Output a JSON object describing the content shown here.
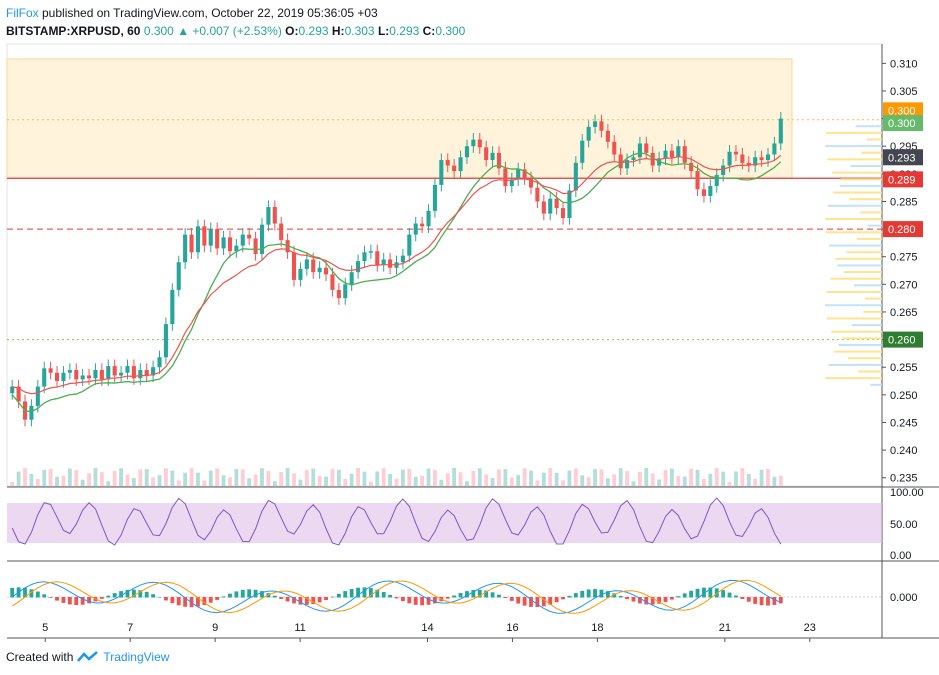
{
  "header": {
    "brand": "FilFox",
    "published": " published on TradingView.com, October 22, 2019 05:36:05 +03",
    "symbol": "BITSTAMP:XRPUSD, 60",
    "last": "0.300",
    "change": "+0.007 (+2.53%)",
    "o_label": "O:",
    "o_val": "0.293",
    "h_label": "H:",
    "h_val": "0.303",
    "l_label": "L:",
    "l_val": "0.293",
    "c_label": "C:",
    "c_val": "0.300"
  },
  "footer": {
    "created": "Created with",
    "tv": "TradingView"
  },
  "colors": {
    "up": "#26a69a",
    "down": "#ef5350",
    "sma": "#4caf50",
    "ema": "#ef5350",
    "zone": "#fff3dc",
    "rsi": "#e1bee7"
  },
  "chart_data": {
    "type": "candlestick",
    "price_axis": [
      "0.310",
      "0.305",
      "0.300",
      "0.295",
      "0.290",
      "0.285",
      "0.280",
      "0.275",
      "0.270",
      "0.265",
      "0.260",
      "0.255",
      "0.250",
      "0.245",
      "0.240",
      "0.235"
    ],
    "price_labels": [
      {
        "text": "0.300",
        "color": "#ff9800"
      },
      {
        "text": "0.300",
        "color": "#66bb6a"
      },
      {
        "text": "0.293",
        "color": "#434651"
      },
      {
        "text": "0.289",
        "color": "#e53935"
      },
      {
        "text": "0.280",
        "color": "#e53935"
      },
      {
        "text": "0.260",
        "color": "#2e7d32"
      }
    ],
    "price_label_values": [
      0.3015,
      0.2992,
      0.293,
      0.289,
      0.28,
      0.26
    ],
    "levels": [
      {
        "value": 0.2892,
        "style": "solid",
        "color": "#e53935"
      },
      {
        "value": 0.28,
        "style": "dashed",
        "color": "#e53935"
      },
      {
        "value": 0.26,
        "style": "dotted",
        "color": "#8bc34a"
      },
      {
        "value": 0.2998,
        "style": "dotted",
        "color": "#ffb74d"
      }
    ],
    "zone": {
      "from": 0.2892,
      "to": 0.3108
    },
    "x_labels": [
      "5",
      "7",
      "9",
      "11",
      "14",
      "16",
      "18",
      "21",
      "23"
    ],
    "x_label_pos": [
      1,
      3,
      5,
      7,
      10,
      12,
      14,
      17,
      19
    ],
    "x_range": [
      0.1,
      20.7
    ],
    "y_range": [
      0.2335,
      0.3135
    ],
    "closes": [
      0.2515,
      0.2488,
      0.2455,
      0.248,
      0.2515,
      0.2548,
      0.254,
      0.2525,
      0.254,
      0.2545,
      0.2528,
      0.2535,
      0.253,
      0.2545,
      0.2528,
      0.2552,
      0.2535,
      0.254,
      0.2552,
      0.253,
      0.2545,
      0.2535,
      0.255,
      0.2568,
      0.2628,
      0.269,
      0.274,
      0.279,
      0.2758,
      0.2805,
      0.277,
      0.28,
      0.2765,
      0.2785,
      0.276,
      0.277,
      0.279,
      0.2783,
      0.2755,
      0.2808,
      0.284,
      0.281,
      0.278,
      0.2758,
      0.2708,
      0.2728,
      0.2745,
      0.2722,
      0.273,
      0.2718,
      0.269,
      0.2675,
      0.27,
      0.2722,
      0.2742,
      0.2758,
      0.276,
      0.2735,
      0.2745,
      0.273,
      0.274,
      0.2752,
      0.279,
      0.281,
      0.2805,
      0.2833,
      0.288,
      0.2925,
      0.2915,
      0.2905,
      0.293,
      0.295,
      0.2962,
      0.2948,
      0.2925,
      0.2938,
      0.291,
      0.2878,
      0.289,
      0.2908,
      0.2892,
      0.2875,
      0.285,
      0.2828,
      0.2855,
      0.2838,
      0.282,
      0.287,
      0.292,
      0.296,
      0.2985,
      0.2995,
      0.2978,
      0.2958,
      0.2935,
      0.291,
      0.2925,
      0.293,
      0.2955,
      0.2938,
      0.2915,
      0.2928,
      0.2942,
      0.293,
      0.295,
      0.292,
      0.2905,
      0.2872,
      0.286,
      0.2878,
      0.2898,
      0.2915,
      0.294,
      0.2935,
      0.292,
      0.2915,
      0.293,
      0.2925,
      0.2935,
      0.2955,
      0.3
    ],
    "volume_axis": [
      "100.00",
      "50.00",
      "0.00"
    ],
    "macd_axis": [
      "0.000"
    ]
  }
}
